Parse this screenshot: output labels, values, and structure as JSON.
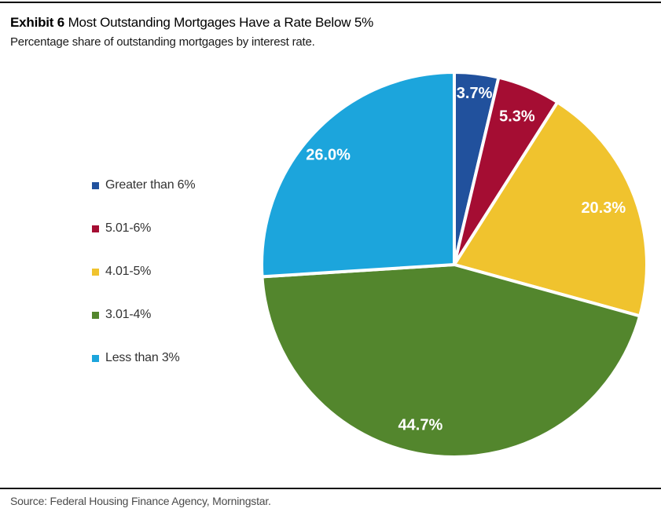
{
  "header": {
    "exhibit_label": "Exhibit 6",
    "title": " Most Outstanding Mortgages Have a Rate Below 5%",
    "subtitle": "Percentage share of outstanding mortgages by interest rate."
  },
  "chart_data": {
    "type": "pie",
    "title": "Most Outstanding Mortgages Have a Rate Below 5%",
    "categories": [
      "Greater than 6%",
      "5.01-6%",
      "4.01-5%",
      "3.01-4%",
      "Less than 3%"
    ],
    "values": [
      3.7,
      5.3,
      20.3,
      44.7,
      26.0
    ],
    "slice_labels": [
      "3.7%",
      "5.3%",
      "20.3%",
      "44.7%",
      "26.0%"
    ],
    "colors": [
      "#21519D",
      "#A50D33",
      "#F0C32E",
      "#53862D",
      "#1CA5DC"
    ],
    "slice_label_color": "#FFFFFF",
    "start_angle_deg": 0,
    "direction": "clockwise",
    "legend_position": "left",
    "separator_color": "#FFFFFF"
  },
  "source": {
    "text": "Source: Federal Housing Finance Agency, Morningstar."
  }
}
